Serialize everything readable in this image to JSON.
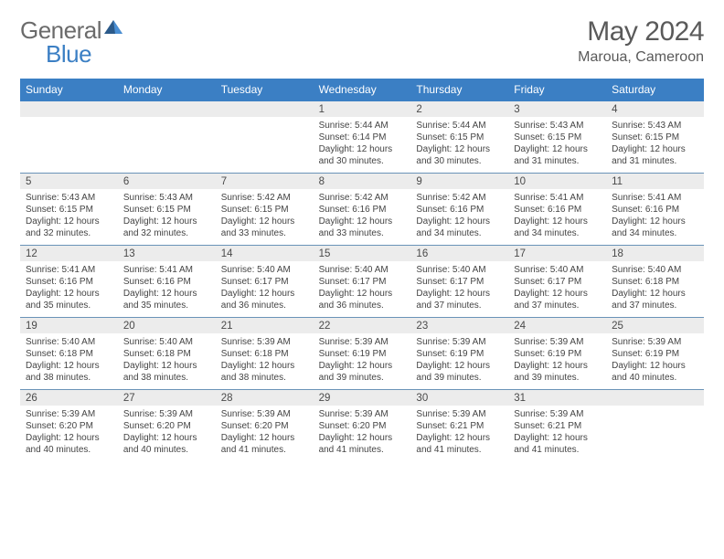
{
  "logo": {
    "text1": "General",
    "text2": "Blue"
  },
  "title": "May 2024",
  "location": "Maroua, Cameroon",
  "colors": {
    "header_bg": "#3b7fc4",
    "header_text": "#ffffff",
    "divider": "#6a93b8",
    "daynum_bg": "#ececec",
    "body_text": "#444444",
    "logo_grey": "#6b6b6b",
    "logo_blue": "#3b7fc4"
  },
  "weekdays": [
    "Sunday",
    "Monday",
    "Tuesday",
    "Wednesday",
    "Thursday",
    "Friday",
    "Saturday"
  ],
  "weeks": [
    [
      {
        "blank": true
      },
      {
        "blank": true
      },
      {
        "blank": true
      },
      {
        "n": "1",
        "sr": "Sunrise: 5:44 AM",
        "ss": "Sunset: 6:14 PM",
        "d1": "Daylight: 12 hours",
        "d2": "and 30 minutes."
      },
      {
        "n": "2",
        "sr": "Sunrise: 5:44 AM",
        "ss": "Sunset: 6:15 PM",
        "d1": "Daylight: 12 hours",
        "d2": "and 30 minutes."
      },
      {
        "n": "3",
        "sr": "Sunrise: 5:43 AM",
        "ss": "Sunset: 6:15 PM",
        "d1": "Daylight: 12 hours",
        "d2": "and 31 minutes."
      },
      {
        "n": "4",
        "sr": "Sunrise: 5:43 AM",
        "ss": "Sunset: 6:15 PM",
        "d1": "Daylight: 12 hours",
        "d2": "and 31 minutes."
      }
    ],
    [
      {
        "n": "5",
        "sr": "Sunrise: 5:43 AM",
        "ss": "Sunset: 6:15 PM",
        "d1": "Daylight: 12 hours",
        "d2": "and 32 minutes."
      },
      {
        "n": "6",
        "sr": "Sunrise: 5:43 AM",
        "ss": "Sunset: 6:15 PM",
        "d1": "Daylight: 12 hours",
        "d2": "and 32 minutes."
      },
      {
        "n": "7",
        "sr": "Sunrise: 5:42 AM",
        "ss": "Sunset: 6:15 PM",
        "d1": "Daylight: 12 hours",
        "d2": "and 33 minutes."
      },
      {
        "n": "8",
        "sr": "Sunrise: 5:42 AM",
        "ss": "Sunset: 6:16 PM",
        "d1": "Daylight: 12 hours",
        "d2": "and 33 minutes."
      },
      {
        "n": "9",
        "sr": "Sunrise: 5:42 AM",
        "ss": "Sunset: 6:16 PM",
        "d1": "Daylight: 12 hours",
        "d2": "and 34 minutes."
      },
      {
        "n": "10",
        "sr": "Sunrise: 5:41 AM",
        "ss": "Sunset: 6:16 PM",
        "d1": "Daylight: 12 hours",
        "d2": "and 34 minutes."
      },
      {
        "n": "11",
        "sr": "Sunrise: 5:41 AM",
        "ss": "Sunset: 6:16 PM",
        "d1": "Daylight: 12 hours",
        "d2": "and 34 minutes."
      }
    ],
    [
      {
        "n": "12",
        "sr": "Sunrise: 5:41 AM",
        "ss": "Sunset: 6:16 PM",
        "d1": "Daylight: 12 hours",
        "d2": "and 35 minutes."
      },
      {
        "n": "13",
        "sr": "Sunrise: 5:41 AM",
        "ss": "Sunset: 6:16 PM",
        "d1": "Daylight: 12 hours",
        "d2": "and 35 minutes."
      },
      {
        "n": "14",
        "sr": "Sunrise: 5:40 AM",
        "ss": "Sunset: 6:17 PM",
        "d1": "Daylight: 12 hours",
        "d2": "and 36 minutes."
      },
      {
        "n": "15",
        "sr": "Sunrise: 5:40 AM",
        "ss": "Sunset: 6:17 PM",
        "d1": "Daylight: 12 hours",
        "d2": "and 36 minutes."
      },
      {
        "n": "16",
        "sr": "Sunrise: 5:40 AM",
        "ss": "Sunset: 6:17 PM",
        "d1": "Daylight: 12 hours",
        "d2": "and 37 minutes."
      },
      {
        "n": "17",
        "sr": "Sunrise: 5:40 AM",
        "ss": "Sunset: 6:17 PM",
        "d1": "Daylight: 12 hours",
        "d2": "and 37 minutes."
      },
      {
        "n": "18",
        "sr": "Sunrise: 5:40 AM",
        "ss": "Sunset: 6:18 PM",
        "d1": "Daylight: 12 hours",
        "d2": "and 37 minutes."
      }
    ],
    [
      {
        "n": "19",
        "sr": "Sunrise: 5:40 AM",
        "ss": "Sunset: 6:18 PM",
        "d1": "Daylight: 12 hours",
        "d2": "and 38 minutes."
      },
      {
        "n": "20",
        "sr": "Sunrise: 5:40 AM",
        "ss": "Sunset: 6:18 PM",
        "d1": "Daylight: 12 hours",
        "d2": "and 38 minutes."
      },
      {
        "n": "21",
        "sr": "Sunrise: 5:39 AM",
        "ss": "Sunset: 6:18 PM",
        "d1": "Daylight: 12 hours",
        "d2": "and 38 minutes."
      },
      {
        "n": "22",
        "sr": "Sunrise: 5:39 AM",
        "ss": "Sunset: 6:19 PM",
        "d1": "Daylight: 12 hours",
        "d2": "and 39 minutes."
      },
      {
        "n": "23",
        "sr": "Sunrise: 5:39 AM",
        "ss": "Sunset: 6:19 PM",
        "d1": "Daylight: 12 hours",
        "d2": "and 39 minutes."
      },
      {
        "n": "24",
        "sr": "Sunrise: 5:39 AM",
        "ss": "Sunset: 6:19 PM",
        "d1": "Daylight: 12 hours",
        "d2": "and 39 minutes."
      },
      {
        "n": "25",
        "sr": "Sunrise: 5:39 AM",
        "ss": "Sunset: 6:19 PM",
        "d1": "Daylight: 12 hours",
        "d2": "and 40 minutes."
      }
    ],
    [
      {
        "n": "26",
        "sr": "Sunrise: 5:39 AM",
        "ss": "Sunset: 6:20 PM",
        "d1": "Daylight: 12 hours",
        "d2": "and 40 minutes."
      },
      {
        "n": "27",
        "sr": "Sunrise: 5:39 AM",
        "ss": "Sunset: 6:20 PM",
        "d1": "Daylight: 12 hours",
        "d2": "and 40 minutes."
      },
      {
        "n": "28",
        "sr": "Sunrise: 5:39 AM",
        "ss": "Sunset: 6:20 PM",
        "d1": "Daylight: 12 hours",
        "d2": "and 41 minutes."
      },
      {
        "n": "29",
        "sr": "Sunrise: 5:39 AM",
        "ss": "Sunset: 6:20 PM",
        "d1": "Daylight: 12 hours",
        "d2": "and 41 minutes."
      },
      {
        "n": "30",
        "sr": "Sunrise: 5:39 AM",
        "ss": "Sunset: 6:21 PM",
        "d1": "Daylight: 12 hours",
        "d2": "and 41 minutes."
      },
      {
        "n": "31",
        "sr": "Sunrise: 5:39 AM",
        "ss": "Sunset: 6:21 PM",
        "d1": "Daylight: 12 hours",
        "d2": "and 41 minutes."
      },
      {
        "blank": true
      }
    ]
  ]
}
